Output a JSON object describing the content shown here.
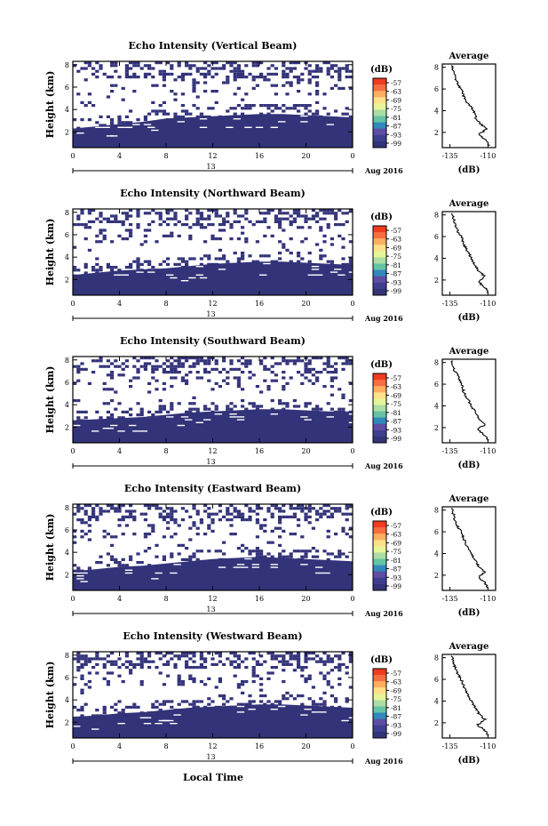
{
  "chart_data": {
    "type": "heatmap",
    "xlabel": "Local Time",
    "x_ticks": [
      "0",
      "4",
      "8",
      "12",
      "16",
      "20",
      "0"
    ],
    "x_mid_label": "13",
    "date_label": "Aug 2016",
    "xlim_hours": [
      0,
      24
    ],
    "ylabel": "Height (km)",
    "y_ticks": [
      "2",
      "4",
      "6",
      "8"
    ],
    "ylim_km": [
      0.6,
      8.3
    ],
    "grid": false,
    "colorbar": {
      "unit": "(dB)",
      "tick_labels": [
        "-57",
        "-63",
        "-69",
        "-75",
        "-81",
        "-87",
        "-93",
        "-99"
      ],
      "colors": [
        "#f03b20",
        "#f46d43",
        "#fdae61",
        "#fee08b",
        "#e6f598",
        "#abdda4",
        "#66c2a5",
        "#3288bd",
        "#5e4fa2",
        "#3f3f8f",
        "#33337a"
      ]
    },
    "average_profile": {
      "title": "Average",
      "xlabel": "(dB)",
      "x_ticks": [
        "-135",
        "-110"
      ],
      "xlim": [
        -140,
        -105
      ],
      "y_ticks": [
        "2",
        "4",
        "6",
        "8"
      ],
      "ylim_km": [
        0.6,
        8.3
      ]
    },
    "panels": [
      {
        "title": "Echo Intensity (Vertical Beam)",
        "boundary_km": [
          [
            0,
            2.3
          ],
          [
            2,
            2.5
          ],
          [
            4,
            2.7
          ],
          [
            6,
            2.9
          ],
          [
            8,
            3.2
          ],
          [
            10,
            3.3
          ],
          [
            12,
            3.4
          ],
          [
            14,
            3.5
          ],
          [
            16,
            3.6
          ],
          [
            18,
            3.6
          ],
          [
            20,
            3.5
          ],
          [
            22,
            3.4
          ],
          [
            24,
            3.3
          ]
        ],
        "average_profile": [
          [
            0.8,
            -109
          ],
          [
            1.3,
            -112
          ],
          [
            1.8,
            -116
          ],
          [
            2.3,
            -111
          ],
          [
            2.8,
            -115
          ],
          [
            3.3,
            -118
          ],
          [
            3.8,
            -119
          ],
          [
            4.3,
            -121
          ],
          [
            4.8,
            -124
          ],
          [
            5.3,
            -126
          ],
          [
            5.8,
            -127
          ],
          [
            6.3,
            -129
          ],
          [
            6.8,
            -131
          ],
          [
            7.3,
            -132
          ],
          [
            7.8,
            -133
          ],
          [
            8.2,
            -134
          ]
        ]
      },
      {
        "title": "Echo Intensity (Northward Beam)",
        "boundary_km": [
          [
            0,
            2.4
          ],
          [
            2,
            2.6
          ],
          [
            4,
            2.8
          ],
          [
            6,
            2.9
          ],
          [
            8,
            3.0
          ],
          [
            10,
            3.2
          ],
          [
            12,
            3.4
          ],
          [
            14,
            3.5
          ],
          [
            16,
            3.6
          ],
          [
            18,
            3.6
          ],
          [
            20,
            3.5
          ],
          [
            22,
            3.4
          ],
          [
            24,
            3.3
          ]
        ],
        "average_profile": [
          [
            0.8,
            -110
          ],
          [
            1.3,
            -112
          ],
          [
            1.8,
            -116
          ],
          [
            2.3,
            -112
          ],
          [
            2.8,
            -116
          ],
          [
            3.3,
            -118
          ],
          [
            3.8,
            -120
          ],
          [
            4.3,
            -122
          ],
          [
            4.8,
            -124
          ],
          [
            5.3,
            -126
          ],
          [
            5.8,
            -127
          ],
          [
            6.3,
            -129
          ],
          [
            6.8,
            -131
          ],
          [
            7.3,
            -132
          ],
          [
            7.8,
            -133
          ],
          [
            8.2,
            -134
          ]
        ]
      },
      {
        "title": "Echo Intensity (Southward Beam)",
        "boundary_km": [
          [
            0,
            2.6
          ],
          [
            2,
            2.7
          ],
          [
            4,
            2.8
          ],
          [
            6,
            2.9
          ],
          [
            8,
            3.1
          ],
          [
            10,
            3.3
          ],
          [
            12,
            3.4
          ],
          [
            14,
            3.5
          ],
          [
            16,
            3.6
          ],
          [
            18,
            3.6
          ],
          [
            20,
            3.5
          ],
          [
            22,
            3.4
          ],
          [
            24,
            3.4
          ]
        ],
        "average_profile": [
          [
            0.8,
            -110
          ],
          [
            1.3,
            -112
          ],
          [
            1.8,
            -117
          ],
          [
            2.3,
            -112
          ],
          [
            2.8,
            -116
          ],
          [
            3.3,
            -118
          ],
          [
            3.8,
            -120
          ],
          [
            4.3,
            -122
          ],
          [
            4.8,
            -124
          ],
          [
            5.3,
            -126
          ],
          [
            5.8,
            -127
          ],
          [
            6.3,
            -128
          ],
          [
            6.8,
            -130
          ],
          [
            7.3,
            -132
          ],
          [
            7.8,
            -133
          ],
          [
            8.2,
            -134
          ]
        ]
      },
      {
        "title": "Echo Intensity (Eastward Beam)",
        "boundary_km": [
          [
            0,
            2.3
          ],
          [
            2,
            2.5
          ],
          [
            4,
            2.7
          ],
          [
            6,
            2.8
          ],
          [
            8,
            3.0
          ],
          [
            10,
            3.2
          ],
          [
            12,
            3.4
          ],
          [
            14,
            3.5
          ],
          [
            16,
            3.6
          ],
          [
            18,
            3.5
          ],
          [
            20,
            3.4
          ],
          [
            22,
            3.3
          ],
          [
            24,
            3.2
          ]
        ],
        "average_profile": [
          [
            0.8,
            -110
          ],
          [
            1.3,
            -112
          ],
          [
            1.8,
            -116
          ],
          [
            2.3,
            -112
          ],
          [
            2.8,
            -116
          ],
          [
            3.3,
            -118
          ],
          [
            3.8,
            -120
          ],
          [
            4.3,
            -122
          ],
          [
            4.8,
            -124
          ],
          [
            5.3,
            -126
          ],
          [
            5.8,
            -127
          ],
          [
            6.3,
            -129
          ],
          [
            6.8,
            -131
          ],
          [
            7.3,
            -132
          ],
          [
            7.8,
            -133
          ],
          [
            8.2,
            -134
          ]
        ]
      },
      {
        "title": "Echo Intensity (Westward Beam)",
        "boundary_km": [
          [
            0,
            2.5
          ],
          [
            2,
            2.6
          ],
          [
            4,
            2.8
          ],
          [
            6,
            2.9
          ],
          [
            8,
            3.1
          ],
          [
            10,
            3.3
          ],
          [
            12,
            3.4
          ],
          [
            14,
            3.5
          ],
          [
            16,
            3.6
          ],
          [
            18,
            3.6
          ],
          [
            20,
            3.5
          ],
          [
            22,
            3.4
          ],
          [
            24,
            3.3
          ]
        ],
        "average_profile": [
          [
            0.8,
            -110
          ],
          [
            1.3,
            -112
          ],
          [
            1.8,
            -117
          ],
          [
            2.3,
            -112
          ],
          [
            2.8,
            -116
          ],
          [
            3.3,
            -118
          ],
          [
            3.8,
            -120
          ],
          [
            4.3,
            -122
          ],
          [
            4.8,
            -124
          ],
          [
            5.3,
            -126
          ],
          [
            5.8,
            -127
          ],
          [
            6.3,
            -129
          ],
          [
            6.8,
            -131
          ],
          [
            7.3,
            -132
          ],
          [
            7.8,
            -133
          ],
          [
            8.2,
            -134
          ]
        ]
      }
    ]
  }
}
